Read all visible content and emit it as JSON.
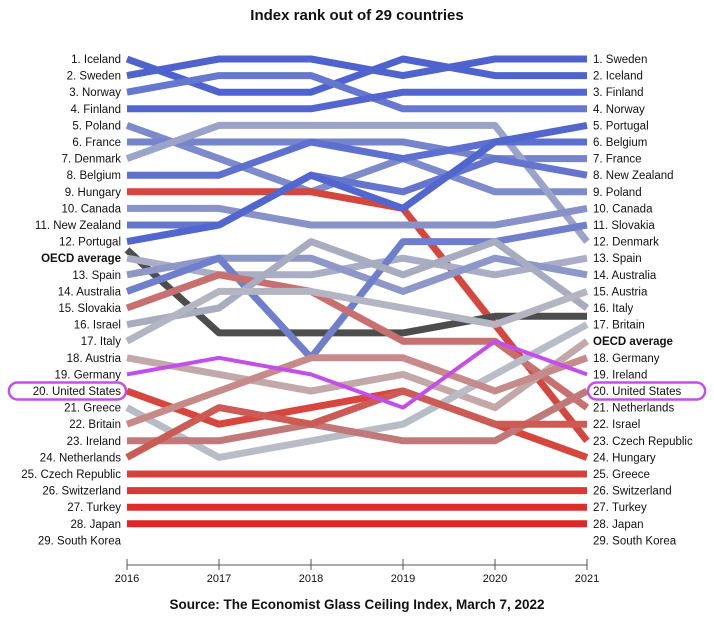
{
  "chart_data": {
    "type": "line",
    "title": "Index rank out of 29 countries",
    "source": "Source: The Economist Glass Ceiling Index, March 7, 2022",
    "x": [
      "2016",
      "2017",
      "2018",
      "2019",
      "2020",
      "2021"
    ],
    "ylim": [
      1,
      30
    ],
    "left_labels": [
      "1. Iceland",
      "2. Sweden",
      "3. Norway",
      "4. Finland",
      "5. Poland",
      "6. France",
      "7. Denmark",
      "8. Belgium",
      "9. Hungary",
      "10. Canada",
      "11. New Zealand",
      "12. Portugal",
      "OECD average",
      "13. Spain",
      "14. Australia",
      "15. Slovakia",
      "16. Israel",
      "17. Italy",
      "18. Austria",
      "19. Germany",
      "20. United States",
      "21. Greece",
      "22. Britain",
      "23. Ireland",
      "24. Netherlands",
      "25. Czech Republic",
      "26. Switzerland",
      "27. Turkey",
      "28. Japan",
      "29. South Korea"
    ],
    "right_labels": [
      "1. Sweden",
      "2. Iceland",
      "3. Finland",
      "4. Norway",
      "5. Portugal",
      "6. Belgium",
      "7. France",
      "8. New Zealand",
      "9. Poland",
      "10. Canada",
      "11. Slovakia",
      "12. Denmark",
      "13. Spain",
      "14. Australia",
      "15. Austria",
      "16. Italy",
      "17. Britain",
      "OECD average",
      "18. Germany",
      "19. Ireland",
      "20. United States",
      "21. Netherlands",
      "22. Israel",
      "23. Czech Republic",
      "24. Hungary",
      "25. Greece",
      "26. Switzerland",
      "27. Turkey",
      "28. Japan",
      "29. South Korea"
    ],
    "highlight": "United States",
    "highlight_color": "#c44ee8",
    "series": [
      {
        "name": "Iceland",
        "values": [
          1,
          3,
          3,
          1,
          2,
          2
        ],
        "color": "#4f63cf"
      },
      {
        "name": "Sweden",
        "values": [
          2,
          1,
          1,
          2,
          1,
          1
        ],
        "color": "#4f63cf"
      },
      {
        "name": "Norway",
        "values": [
          3,
          2,
          2,
          4,
          4,
          4
        ],
        "color": "#6677cf"
      },
      {
        "name": "Finland",
        "values": [
          4,
          4,
          4,
          3,
          3,
          3
        ],
        "color": "#5366cf"
      },
      {
        "name": "Poland",
        "values": [
          5,
          7,
          9,
          7,
          9,
          9
        ],
        "color": "#7d8bca"
      },
      {
        "name": "France",
        "values": [
          6,
          6,
          6,
          6,
          7,
          7
        ],
        "color": "#7684cc"
      },
      {
        "name": "Denmark",
        "values": [
          7,
          5,
          5,
          5,
          5,
          12
        ],
        "color": "#9aa3c8"
      },
      {
        "name": "Belgium",
        "values": [
          8,
          8,
          6,
          7,
          6,
          6
        ],
        "color": "#5e70cf"
      },
      {
        "name": "Hungary",
        "values": [
          9,
          9,
          9,
          10,
          17,
          24
        ],
        "color": "#d4473f"
      },
      {
        "name": "Canada",
        "values": [
          10,
          10,
          11,
          11,
          11,
          10
        ],
        "color": "#8892c8"
      },
      {
        "name": "New Zealand",
        "values": [
          11,
          11,
          8,
          9,
          7,
          8
        ],
        "color": "#6475cd"
      },
      {
        "name": "Portugal",
        "values": [
          12,
          11,
          8,
          10,
          6,
          5
        ],
        "color": "#5266cf"
      },
      {
        "name": "OECD average",
        "values": [
          12.5,
          17.5,
          17.5,
          17.5,
          16.5,
          16.5
        ],
        "color": "#4d4d4d"
      },
      {
        "name": "Spain",
        "values": [
          13,
          14,
          14,
          13,
          14,
          13
        ],
        "color": "#a9aec6"
      },
      {
        "name": "Australia",
        "values": [
          14,
          13,
          13,
          15,
          13,
          14
        ],
        "color": "#8d97c8"
      },
      {
        "name": "Slovakia",
        "values": [
          15,
          13,
          19,
          12,
          12,
          11
        ],
        "color": "#6f7fcb"
      },
      {
        "name": "Israel",
        "values": [
          16,
          14,
          15,
          18,
          18,
          22
        ],
        "color": "#c87070"
      },
      {
        "name": "Italy",
        "values": [
          17,
          16,
          12,
          14,
          12,
          16
        ],
        "color": "#a8acbf"
      },
      {
        "name": "Austria",
        "values": [
          18,
          15,
          15,
          16,
          17,
          15
        ],
        "color": "#b3b6c2"
      },
      {
        "name": "Germany",
        "values": [
          19,
          20,
          21,
          20,
          22,
          18
        ],
        "color": "#c2a8a8"
      },
      {
        "name": "United States",
        "values": [
          20,
          19,
          20,
          22,
          18,
          20
        ],
        "color": "#c44ee8"
      },
      {
        "name": "Greece",
        "values": [
          21,
          23,
          22,
          21,
          23,
          25
        ],
        "color": "#d8453d"
      },
      {
        "name": "Britain",
        "values": [
          22,
          25,
          24,
          23,
          20,
          17
        ],
        "color": "#b8bcc6"
      },
      {
        "name": "Ireland",
        "values": [
          23,
          21,
          19,
          19,
          21,
          19
        ],
        "color": "#c78a8a"
      },
      {
        "name": "Netherlands",
        "values": [
          24,
          24,
          23,
          24,
          24,
          21
        ],
        "color": "#c07878"
      },
      {
        "name": "Czech Republic",
        "values": [
          25,
          22,
          23,
          21,
          23,
          23
        ],
        "color": "#cc5a55"
      },
      {
        "name": "Switzerland",
        "values": [
          26,
          26,
          26,
          26,
          26,
          26
        ],
        "color": "#d6403a"
      },
      {
        "name": "Turkey",
        "values": [
          27,
          27,
          27,
          27,
          27,
          27
        ],
        "color": "#d83a35"
      },
      {
        "name": "Japan",
        "values": [
          28,
          28,
          28,
          28,
          28,
          28
        ],
        "color": "#dd2f2b"
      },
      {
        "name": "South Korea",
        "values": [
          29,
          29,
          29,
          29,
          29,
          29
        ],
        "color": "#e22424"
      }
    ]
  }
}
